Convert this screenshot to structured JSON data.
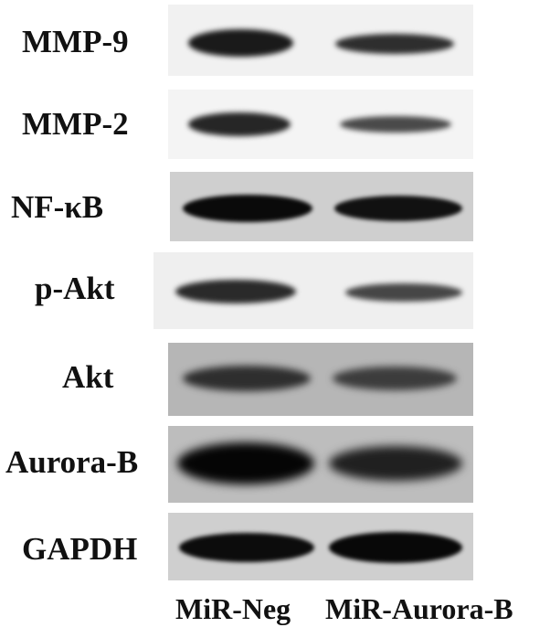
{
  "rows": [
    {
      "label": "MMP-9",
      "background": "#f1f1f1",
      "lane1_color": "#1a1a1a",
      "lane2_color": "#2e2e2e"
    },
    {
      "label": "MMP-2",
      "background": "#f4f4f4",
      "lane1_color": "#262626",
      "lane2_color": "#4a4a4a"
    },
    {
      "label": "NF-κB",
      "background": "#cfcfcf",
      "lane1_color": "#0a0a0a",
      "lane2_color": "#111111"
    },
    {
      "label": "p-Akt",
      "background": "#efefef",
      "lane1_color": "#2a2a2a",
      "lane2_color": "#464646"
    },
    {
      "label": "Akt",
      "background": "#b6b6b6",
      "lane1_color": "#2e2e2e",
      "lane2_color": "#3c3c3c"
    },
    {
      "label": "Aurora-B",
      "background": "#bdbdbd",
      "lane1_color": "#050505",
      "lane2_color": "#202020"
    },
    {
      "label": "GAPDH",
      "background": "#cfcfcf",
      "lane1_color": "#0c0c0c",
      "lane2_color": "#080808"
    }
  ],
  "lanes": [
    "MiR-Neg",
    "MiR-Aurora-B"
  ]
}
